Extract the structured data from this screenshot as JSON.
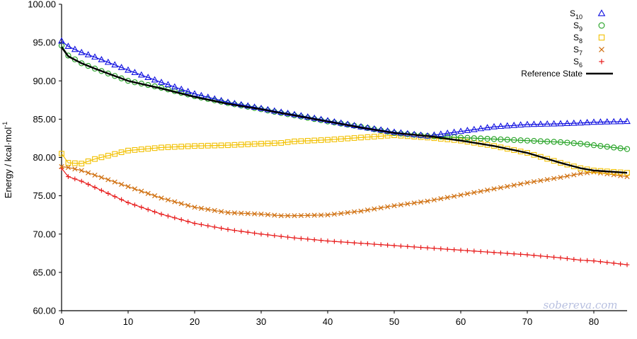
{
  "chart_data": {
    "type": "line",
    "title": "",
    "xlabel": "",
    "ylabel": "Energy / kcal·mol",
    "ylabel_sup": "-1",
    "xlim": [
      0,
      85
    ],
    "ylim": [
      60,
      100
    ],
    "x_ticks": [
      "0",
      "10",
      "20",
      "30",
      "40",
      "50",
      "60",
      "70",
      "80"
    ],
    "y_ticks": [
      "60.00",
      "65.00",
      "70.00",
      "75.00",
      "80.00",
      "85.00",
      "90.00",
      "95.00",
      "100.00"
    ],
    "grid": false,
    "legend_position": "top-right",
    "watermark": "sobereva.com",
    "x_anchors": [
      0,
      1,
      3,
      5,
      10,
      15,
      20,
      25,
      30,
      33,
      35,
      40,
      45,
      50,
      55,
      60,
      65,
      70,
      75,
      78,
      80,
      85
    ],
    "series": [
      {
        "base": "S",
        "sub": "10",
        "marker": "triangle",
        "color": "#1010e0",
        "values": [
          95.2,
          94.5,
          93.7,
          93.1,
          91.4,
          89.8,
          88.3,
          87.2,
          86.4,
          85.9,
          85.6,
          84.8,
          84.0,
          83.3,
          82.8,
          83.4,
          84.0,
          84.3,
          84.4,
          84.5,
          84.6,
          84.7
        ]
      },
      {
        "base": "S",
        "sub": "9",
        "marker": "circle",
        "color": "#20a020",
        "values": [
          94.6,
          93.3,
          92.3,
          91.6,
          90.0,
          89.1,
          88.0,
          87.1,
          86.3,
          85.8,
          85.5,
          84.7,
          84.0,
          83.2,
          82.8,
          82.6,
          82.4,
          82.2,
          82.0,
          81.8,
          81.6,
          81.1
        ]
      },
      {
        "base": "S",
        "sub": "8",
        "marker": "square",
        "color": "#f2c000",
        "values": [
          80.5,
          79.3,
          79.2,
          79.8,
          80.9,
          81.3,
          81.5,
          81.6,
          81.8,
          81.9,
          82.1,
          82.3,
          82.6,
          82.9,
          82.6,
          82.2,
          81.5,
          80.6,
          79.3,
          78.6,
          78.3,
          78.0
        ]
      },
      {
        "base": "S",
        "sub": "7",
        "marker": "x",
        "color": "#d07010",
        "values": [
          78.8,
          78.7,
          78.3,
          77.7,
          76.2,
          74.7,
          73.5,
          72.8,
          72.6,
          72.4,
          72.4,
          72.5,
          73.0,
          73.7,
          74.3,
          75.1,
          75.9,
          76.7,
          77.4,
          77.9,
          78.1,
          77.5
        ]
      },
      {
        "base": "S",
        "sub": "6",
        "marker": "plus",
        "color": "#e82020",
        "values": [
          78.6,
          77.5,
          76.9,
          76.1,
          74.1,
          72.6,
          71.4,
          70.6,
          70.0,
          69.7,
          69.5,
          69.1,
          68.8,
          68.5,
          68.2,
          67.9,
          67.6,
          67.3,
          66.9,
          66.6,
          66.5,
          66.0
        ]
      },
      {
        "name": "Reference State",
        "marker": "line",
        "color": "#000000",
        "values": [
          94.4,
          93.2,
          92.3,
          91.6,
          90.0,
          89.0,
          87.9,
          87.0,
          86.3,
          85.8,
          85.5,
          84.7,
          83.9,
          83.2,
          82.8,
          82.2,
          81.5,
          80.6,
          79.3,
          78.6,
          78.3,
          78.0
        ]
      }
    ]
  }
}
